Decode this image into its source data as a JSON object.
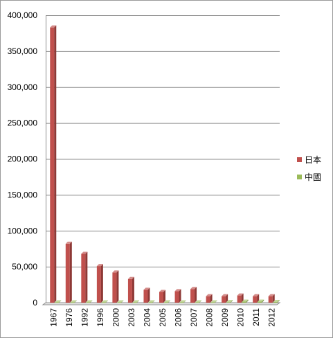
{
  "chart_data": {
    "type": "bar",
    "categories": [
      "1967",
      "1976",
      "1992",
      "1996",
      "2000",
      "2003",
      "2004",
      "2005",
      "2006",
      "2007",
      "2008",
      "2009",
      "2010",
      "2011",
      "2012"
    ],
    "series": [
      {
        "name": "日本",
        "color": "#c0504d",
        "values": [
          383000,
          82000,
          68000,
          51000,
          42000,
          33000,
          18000,
          15000,
          16000,
          19000,
          9000,
          9000,
          10000,
          9000,
          9000
        ]
      },
      {
        "name": "中國",
        "color": "#9bbb59",
        "values": [
          500,
          500,
          500,
          500,
          500,
          500,
          500,
          500,
          500,
          500,
          500,
          800,
          1500,
          1500,
          1000
        ]
      }
    ],
    "ylim": [
      0,
      400000
    ],
    "yticks": [
      "0",
      "50,000",
      "100,000",
      "150,000",
      "200,000",
      "250,000",
      "300,000",
      "350,000",
      "400,000"
    ],
    "grid": true,
    "legend_position": "right"
  }
}
